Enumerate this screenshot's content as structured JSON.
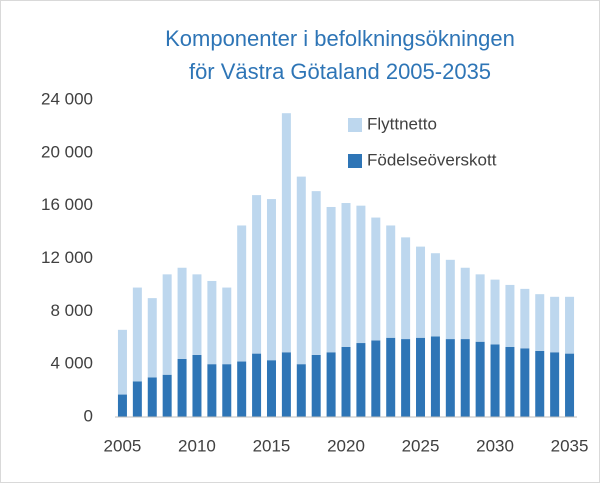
{
  "chart_data": {
    "type": "stacked_bar",
    "title_lines": [
      "Komponenter i befolkningsökningen",
      "för Västra Götaland 2005-2035"
    ],
    "categories": [
      "2005",
      null,
      null,
      null,
      null,
      "2010",
      null,
      null,
      null,
      null,
      "2015",
      null,
      null,
      null,
      null,
      "2020",
      null,
      null,
      null,
      null,
      "2025",
      null,
      null,
      null,
      null,
      "2030",
      null,
      null,
      null,
      null,
      "2035"
    ],
    "series": [
      {
        "name": "Födelseöverskott",
        "color": "#2e75b6",
        "values": [
          1700,
          2700,
          3000,
          3200,
          4400,
          4700,
          4000,
          4000,
          4200,
          4800,
          4300,
          4900,
          4000,
          4700,
          4900,
          5300,
          5600,
          5800,
          6000,
          5900,
          6000,
          6100,
          5900,
          5900,
          5700,
          5500,
          5300,
          5200,
          5000,
          4900,
          4800
        ]
      },
      {
        "name": "Flyttnetto",
        "color": "#bdd7ee",
        "values": [
          4900,
          7100,
          6000,
          7600,
          6900,
          6100,
          6300,
          5800,
          10300,
          12000,
          12200,
          18100,
          14200,
          12400,
          11000,
          10900,
          10400,
          9300,
          8500,
          7700,
          6900,
          6300,
          6000,
          5400,
          5100,
          4900,
          4700,
          4500,
          4300,
          4200,
          4300
        ]
      }
    ],
    "ylim": [
      0,
      24000
    ],
    "yticks": [
      0,
      {
        "value": 4000,
        "label": "4 000"
      },
      {
        "value": 8000,
        "label": "8 000"
      },
      {
        "value": 12000,
        "label": "12 000"
      },
      {
        "value": 16000,
        "label": "16 000"
      },
      {
        "value": 20000,
        "label": "20 000"
      },
      {
        "value": 24000,
        "label": "24 000"
      }
    ],
    "grid": false
  }
}
